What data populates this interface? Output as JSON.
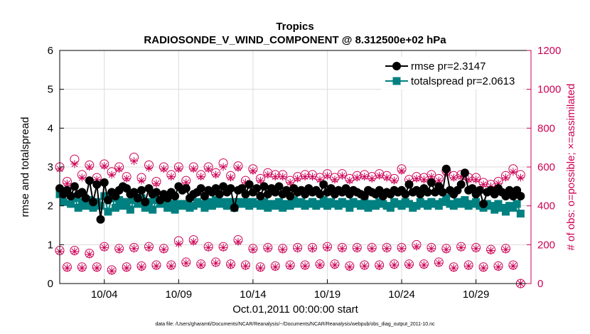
{
  "chart_data": {
    "type": "line",
    "title": "Tropics",
    "subtitle": "RADIOSONDE_V_WIND_COMPONENT @ 8.312500e+02 hPa",
    "xlabel": "Oct.01,2011 00:00:00 start",
    "ylabel": "rmse and totalspread",
    "y2label": "# of obs: o=possible; ×=assimilated",
    "footnote": "data file: /Users/gharamti/Documents/NCAR/Reanalysis/~/Documents/NCAR/Reanalysis/webpub/obs_diag_output_2011-10.nc",
    "xlim": [
      1,
      32.7
    ],
    "ylim": [
      0,
      6
    ],
    "y2lim": [
      0,
      1200
    ],
    "xticks": [
      4,
      9,
      14,
      19,
      24,
      29
    ],
    "xtick_labels": [
      "10/04",
      "10/09",
      "10/14",
      "10/19",
      "10/24",
      "10/29"
    ],
    "yticks": [
      0,
      1,
      2,
      3,
      4,
      5,
      6
    ],
    "ytick_labels": [
      "0",
      "1",
      "2",
      "3",
      "4",
      "5",
      "6"
    ],
    "y2ticks": [
      0,
      200,
      400,
      600,
      800,
      1000,
      1200
    ],
    "y2tick_labels": [
      "0",
      "200",
      "400",
      "600",
      "800",
      "1000",
      "1200"
    ],
    "colors": {
      "rmse": "#000000",
      "totalspread": "#008080",
      "obs": "#cc0055",
      "right_axis": "#cc0055",
      "grid": "#dcdcdc"
    },
    "legend": {
      "position": "top-right",
      "entries": [
        "rmse pr=2.3147",
        "totalspread pr=2.0613"
      ]
    },
    "series": [
      {
        "name": "rmse pr=2.3147",
        "axis": "left",
        "marker": "filled-circle",
        "x": [
          1.0,
          1.25,
          1.5,
          1.75,
          2.0,
          2.25,
          2.5,
          2.75,
          3.0,
          3.25,
          3.5,
          3.75,
          4.0,
          4.25,
          4.5,
          4.75,
          5.0,
          5.25,
          5.5,
          5.75,
          6.0,
          6.25,
          6.5,
          6.75,
          7.0,
          7.25,
          7.5,
          7.75,
          8.0,
          8.25,
          8.5,
          8.75,
          9.0,
          9.25,
          9.5,
          9.75,
          10.0,
          10.25,
          10.5,
          10.75,
          11.0,
          11.25,
          11.5,
          11.75,
          12.0,
          12.25,
          12.5,
          12.75,
          13.0,
          13.25,
          13.5,
          13.75,
          14.0,
          14.25,
          14.5,
          14.75,
          15.0,
          15.25,
          15.5,
          15.75,
          16.0,
          16.25,
          16.5,
          16.75,
          17.0,
          17.25,
          17.5,
          17.75,
          18.0,
          18.25,
          18.5,
          18.75,
          19.0,
          19.25,
          19.5,
          19.75,
          20.0,
          20.25,
          20.5,
          20.75,
          21.0,
          21.25,
          21.5,
          21.75,
          22.0,
          22.25,
          22.5,
          22.75,
          23.0,
          23.25,
          23.5,
          23.75,
          24.0,
          24.25,
          24.5,
          24.75,
          25.0,
          25.25,
          25.5,
          25.75,
          26.0,
          26.25,
          26.5,
          26.75,
          27.0,
          27.25,
          27.5,
          27.75,
          28.0,
          28.25,
          28.5,
          28.75,
          29.0,
          29.25,
          29.5,
          29.75,
          30.0,
          30.25,
          30.5,
          30.75,
          31.0,
          31.25,
          31.5,
          31.75,
          32.0
        ],
        "values": [
          2.45,
          2.3,
          2.4,
          2.25,
          2.5,
          2.3,
          2.35,
          2.2,
          2.65,
          2.1,
          2.55,
          1.65,
          2.6,
          2.15,
          2.35,
          2.25,
          2.4,
          2.5,
          2.45,
          2.3,
          2.35,
          2.2,
          2.4,
          2.1,
          2.45,
          2.3,
          2.35,
          2.15,
          2.3,
          2.2,
          2.35,
          2.25,
          2.5,
          2.4,
          2.45,
          2.2,
          2.3,
          2.35,
          2.45,
          2.25,
          2.4,
          2.35,
          2.45,
          2.3,
          2.5,
          2.35,
          2.45,
          1.95,
          2.4,
          2.45,
          2.3,
          2.55,
          2.35,
          2.45,
          2.25,
          2.5,
          2.3,
          2.45,
          2.35,
          2.5,
          2.3,
          2.4,
          2.25,
          2.45,
          2.35,
          2.4,
          2.3,
          2.45,
          2.35,
          2.4,
          2.3,
          2.55,
          2.35,
          2.45,
          2.3,
          2.4,
          2.35,
          2.45,
          2.3,
          2.4,
          2.35,
          2.3,
          2.25,
          2.4,
          2.35,
          2.3,
          2.4,
          2.25,
          2.35,
          2.3,
          2.4,
          2.35,
          2.4,
          2.3,
          2.55,
          2.35,
          2.4,
          2.3,
          2.45,
          2.35,
          2.6,
          2.35,
          2.5,
          2.35,
          2.95,
          2.4,
          2.3,
          2.4,
          2.55,
          2.85,
          2.4,
          2.45,
          2.3,
          2.4,
          2.05,
          2.35,
          2.4,
          2.3,
          2.45,
          2.35,
          2.25,
          2.4,
          2.25,
          2.4,
          2.25
        ]
      },
      {
        "name": "totalspread pr=2.0613",
        "axis": "left",
        "marker": "filled-square",
        "x": [
          1.0,
          1.25,
          1.5,
          1.75,
          2.0,
          2.25,
          2.5,
          2.75,
          3.0,
          3.25,
          3.5,
          3.75,
          4.0,
          4.25,
          4.5,
          4.75,
          5.0,
          5.25,
          5.5,
          5.75,
          6.0,
          6.25,
          6.5,
          6.75,
          7.0,
          7.25,
          7.5,
          7.75,
          8.0,
          8.25,
          8.5,
          8.75,
          9.0,
          9.25,
          9.5,
          9.75,
          10.0,
          10.25,
          10.5,
          10.75,
          11.0,
          11.25,
          11.5,
          11.75,
          12.0,
          12.25,
          12.5,
          12.75,
          13.0,
          13.25,
          13.5,
          13.75,
          14.0,
          14.25,
          14.5,
          14.75,
          15.0,
          15.25,
          15.5,
          15.75,
          16.0,
          16.25,
          16.5,
          16.75,
          17.0,
          17.25,
          17.5,
          17.75,
          18.0,
          18.25,
          18.5,
          18.75,
          19.0,
          19.25,
          19.5,
          19.75,
          20.0,
          20.25,
          20.5,
          20.75,
          21.0,
          21.25,
          21.5,
          21.75,
          22.0,
          22.25,
          22.5,
          22.75,
          23.0,
          23.25,
          23.5,
          23.75,
          24.0,
          24.25,
          24.5,
          24.75,
          25.0,
          25.25,
          25.5,
          25.75,
          26.0,
          26.25,
          26.5,
          26.75,
          27.0,
          27.25,
          27.5,
          27.75,
          28.0,
          28.25,
          28.5,
          28.75,
          29.0,
          29.25,
          29.5,
          29.75,
          30.0,
          30.25,
          30.5,
          30.75,
          31.0,
          31.25,
          31.5,
          31.75,
          32.0
        ],
        "values": [
          2.3,
          2.1,
          2.35,
          2.05,
          2.2,
          1.95,
          2.1,
          2.0,
          2.15,
          1.95,
          2.1,
          2.0,
          2.25,
          1.85,
          2.2,
          1.95,
          2.15,
          2.0,
          2.1,
          1.9,
          2.15,
          2.05,
          2.2,
          1.95,
          2.1,
          1.9,
          2.15,
          2.05,
          2.1,
          1.95,
          2.05,
          1.9,
          2.05,
          2.0,
          2.05,
          1.95,
          2.0,
          2.1,
          2.05,
          1.95,
          2.1,
          2.0,
          2.15,
          2.05,
          2.1,
          2.0,
          2.1,
          1.95,
          2.1,
          2.05,
          2.1,
          2.0,
          2.1,
          2.05,
          2.0,
          2.1,
          1.95,
          2.05,
          2.0,
          2.1,
          1.95,
          2.05,
          2.0,
          2.15,
          2.05,
          2.1,
          2.0,
          2.05,
          2.1,
          2.0,
          2.05,
          2.15,
          2.0,
          2.1,
          2.05,
          2.0,
          2.1,
          2.05,
          1.95,
          2.1,
          2.05,
          2.0,
          2.1,
          1.95,
          2.05,
          2.0,
          2.1,
          2.05,
          2.0,
          1.95,
          2.1,
          2.05,
          2.0,
          2.1,
          2.05,
          1.95,
          2.0,
          2.1,
          2.05,
          2.0,
          2.1,
          2.05,
          2.0,
          2.1,
          2.2,
          2.05,
          2.0,
          2.1,
          2.05,
          2.15,
          2.0,
          2.05,
          2.1,
          2.0,
          1.95,
          2.05,
          2.0,
          1.9,
          2.05,
          1.95,
          1.85,
          2.0,
          1.95,
          2.05,
          1.8
        ]
      },
      {
        "name": "obs possible (upper)",
        "axis": "right",
        "marker": "circle-open",
        "x": [
          1.0,
          1.5,
          2.0,
          2.5,
          3.0,
          3.5,
          4.0,
          4.5,
          5.0,
          5.5,
          6.0,
          6.5,
          7.0,
          7.5,
          8.0,
          8.5,
          9.0,
          9.5,
          10.0,
          10.5,
          11.0,
          11.5,
          12.0,
          12.5,
          13.0,
          13.5,
          14.0,
          14.5,
          15.0,
          15.5,
          16.0,
          16.5,
          17.0,
          17.5,
          18.0,
          18.5,
          19.0,
          19.5,
          20.0,
          20.5,
          21.0,
          21.5,
          22.0,
          22.5,
          23.0,
          23.5,
          24.0,
          24.5,
          25.0,
          25.5,
          26.0,
          26.5,
          27.0,
          27.5,
          28.0,
          28.5,
          29.0,
          29.5,
          30.0,
          30.5,
          31.0,
          31.5,
          32.0
        ],
        "values": [
          600,
          525,
          640,
          560,
          610,
          545,
          615,
          575,
          600,
          550,
          650,
          545,
          610,
          525,
          600,
          560,
          600,
          530,
          600,
          560,
          600,
          570,
          620,
          555,
          605,
          530,
          590,
          540,
          570,
          560,
          560,
          530,
          550,
          560,
          560,
          545,
          565,
          545,
          565,
          540,
          555,
          560,
          550,
          565,
          555,
          540,
          590,
          535,
          550,
          545,
          560,
          540,
          580,
          555,
          560,
          545,
          545,
          520,
          510,
          525,
          555,
          590,
          560
        ]
      },
      {
        "name": "obs assimilated (upper)",
        "axis": "right",
        "marker": "asterisk",
        "x": [
          1.0,
          1.5,
          2.0,
          2.5,
          3.0,
          3.5,
          4.0,
          4.5,
          5.0,
          5.5,
          6.0,
          6.5,
          7.0,
          7.5,
          8.0,
          8.5,
          9.0,
          9.5,
          10.0,
          10.5,
          11.0,
          11.5,
          12.0,
          12.5,
          13.0,
          13.5,
          14.0,
          14.5,
          15.0,
          15.5,
          16.0,
          16.5,
          17.0,
          17.5,
          18.0,
          18.5,
          19.0,
          19.5,
          20.0,
          20.5,
          21.0,
          21.5,
          22.0,
          22.5,
          23.0,
          23.5,
          24.0,
          24.5,
          25.0,
          25.5,
          26.0,
          26.5,
          27.0,
          27.5,
          28.0,
          28.5,
          29.0,
          29.5,
          30.0,
          30.5,
          31.0,
          31.5,
          32.0
        ],
        "values": [
          590,
          515,
          615,
          545,
          600,
          535,
          605,
          560,
          590,
          540,
          630,
          530,
          595,
          515,
          590,
          550,
          590,
          520,
          590,
          550,
          590,
          560,
          600,
          545,
          595,
          520,
          580,
          530,
          560,
          550,
          550,
          520,
          540,
          550,
          550,
          535,
          555,
          535,
          555,
          530,
          545,
          550,
          540,
          555,
          545,
          530,
          580,
          525,
          540,
          535,
          550,
          530,
          570,
          545,
          550,
          535,
          535,
          510,
          500,
          515,
          545,
          575,
          545
        ]
      },
      {
        "name": "obs possible (lower)",
        "axis": "right",
        "marker": "circle-open",
        "x": [
          1.0,
          1.5,
          2.0,
          2.5,
          3.0,
          3.5,
          4.0,
          4.5,
          5.0,
          5.5,
          6.0,
          6.5,
          7.0,
          7.5,
          8.0,
          8.5,
          9.0,
          9.5,
          10.0,
          10.5,
          11.0,
          11.5,
          12.0,
          12.5,
          13.0,
          13.5,
          14.0,
          14.5,
          15.0,
          15.5,
          16.0,
          16.5,
          17.0,
          17.5,
          18.0,
          18.5,
          19.0,
          19.5,
          20.0,
          20.5,
          21.0,
          21.5,
          22.0,
          22.5,
          23.0,
          23.5,
          24.0,
          24.5,
          25.0,
          25.5,
          26.0,
          26.5,
          27.0,
          27.5,
          28.0,
          28.5,
          29.0,
          29.5,
          30.0,
          30.5,
          31.0,
          31.5,
          32.0
        ],
        "values": [
          170,
          85,
          170,
          85,
          155,
          85,
          190,
          70,
          180,
          85,
          185,
          90,
          190,
          95,
          180,
          95,
          220,
          110,
          225,
          100,
          190,
          110,
          190,
          100,
          225,
          95,
          180,
          85,
          185,
          90,
          180,
          95,
          185,
          95,
          185,
          100,
          190,
          100,
          185,
          90,
          185,
          95,
          185,
          95,
          185,
          100,
          185,
          100,
          200,
          100,
          185,
          110,
          180,
          85,
          190,
          95,
          185,
          85,
          175,
          90,
          180,
          95,
          0
        ]
      },
      {
        "name": "obs assimilated (lower)",
        "axis": "right",
        "marker": "asterisk",
        "x": [
          1.0,
          1.5,
          2.0,
          2.5,
          3.0,
          3.5,
          4.0,
          4.5,
          5.0,
          5.5,
          6.0,
          6.5,
          7.0,
          7.5,
          8.0,
          8.5,
          9.0,
          9.5,
          10.0,
          10.5,
          11.0,
          11.5,
          12.0,
          12.5,
          13.0,
          13.5,
          14.0,
          14.5,
          15.0,
          15.5,
          16.0,
          16.5,
          17.0,
          17.5,
          18.0,
          18.5,
          19.0,
          19.5,
          20.0,
          20.5,
          21.0,
          21.5,
          22.0,
          22.5,
          23.0,
          23.5,
          24.0,
          24.5,
          25.0,
          25.5,
          26.0,
          26.5,
          27.0,
          27.5,
          28.0,
          28.5,
          29.0,
          29.5,
          30.0,
          30.5,
          31.0,
          31.5,
          32.0
        ],
        "values": [
          165,
          80,
          165,
          80,
          150,
          80,
          185,
          65,
          175,
          80,
          180,
          85,
          185,
          90,
          175,
          90,
          205,
          105,
          215,
          95,
          185,
          105,
          185,
          95,
          215,
          90,
          175,
          80,
          180,
          85,
          175,
          90,
          180,
          90,
          180,
          95,
          185,
          95,
          180,
          85,
          180,
          90,
          180,
          90,
          180,
          95,
          180,
          95,
          190,
          95,
          180,
          105,
          175,
          80,
          185,
          90,
          180,
          80,
          170,
          85,
          175,
          90,
          0
        ]
      }
    ]
  }
}
